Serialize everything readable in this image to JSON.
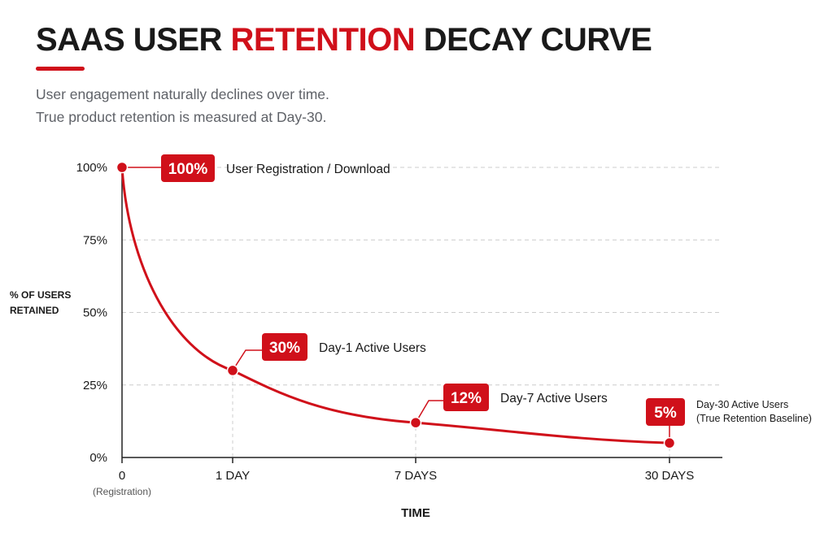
{
  "header": {
    "title_part1": "SAAS USER ",
    "title_accent": "RETENTION",
    "title_part2": " DECAY CURVE",
    "subtitle_line1": "User engagement naturally declines over time.",
    "subtitle_line2": "True product retention is measured at Day-30."
  },
  "colors": {
    "accent": "#d0101a",
    "grid": "#cccccc",
    "axis": "#222222"
  },
  "chart_data": {
    "type": "line",
    "ylabel_line1": "% OF USERS",
    "ylabel_line2": "RETAINED",
    "xlabel": "TIME",
    "ylim": [
      0,
      100
    ],
    "y_ticks": [
      {
        "value": 100,
        "label": "100%"
      },
      {
        "value": 75,
        "label": "75%"
      },
      {
        "value": 50,
        "label": "50%"
      },
      {
        "value": 25,
        "label": "25%"
      },
      {
        "value": 0,
        "label": "0%"
      }
    ],
    "x_ticks": [
      {
        "label": "0",
        "sublabel": "(Registration)"
      },
      {
        "label": "1 DAY",
        "sublabel": ""
      },
      {
        "label": "7 DAYS",
        "sublabel": ""
      },
      {
        "label": "30 DAYS",
        "sublabel": ""
      }
    ],
    "grid": true,
    "points": [
      {
        "x": "0",
        "y": 100,
        "badge": "100%",
        "annotation": [
          "User Registration / Download"
        ]
      },
      {
        "x": "1 DAY",
        "y": 30,
        "badge": "30%",
        "annotation": [
          "Day-1 Active Users"
        ]
      },
      {
        "x": "7 DAYS",
        "y": 12,
        "badge": "12%",
        "annotation": [
          "Day-7 Active Users"
        ]
      },
      {
        "x": "30 DAYS",
        "y": 5,
        "badge": "5%",
        "annotation": [
          "Day-30 Active Users",
          "(True Retention Baseline)"
        ]
      }
    ]
  }
}
